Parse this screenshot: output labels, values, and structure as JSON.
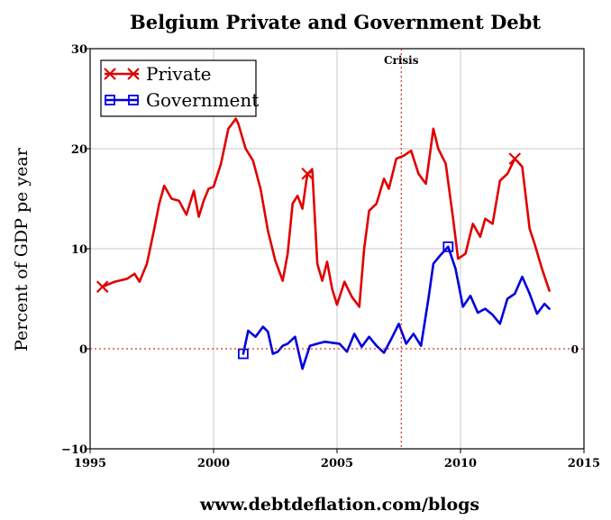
{
  "chart_data": {
    "type": "line",
    "title": "Belgium Private and Government Debt",
    "xlabel": "",
    "ylabel": "Percent of GDP pe year",
    "xlim": [
      1995,
      2015
    ],
    "ylim": [
      -10,
      30
    ],
    "x_ticks": [
      1995,
      2000,
      2005,
      2010,
      2015
    ],
    "y_ticks": [
      -10,
      0,
      10,
      20,
      30
    ],
    "x_tick_labels": [
      "1995",
      "2000",
      "2005",
      "2010",
      "2015"
    ],
    "y_tick_labels": [
      "−10",
      "0",
      "10",
      "20",
      "30"
    ],
    "grid": true,
    "legend_position": "top-left",
    "annotations": {
      "crisis_label": "Crisis",
      "crisis_x": 2007.6,
      "zero_label": "0"
    },
    "footer": "www.debtdeflation.com/blogs",
    "series": [
      {
        "name": "Private",
        "color": "#e00000",
        "marker": "x",
        "x": [
          1995.5,
          1996.0,
          1996.5,
          1996.8,
          1997.0,
          1997.3,
          1997.6,
          1997.8,
          1998.0,
          1998.3,
          1998.6,
          1998.9,
          1999.2,
          1999.4,
          1999.6,
          1999.8,
          2000.0,
          2000.3,
          2000.6,
          2000.9,
          2001.0,
          2001.3,
          2001.6,
          2001.9,
          2002.2,
          2002.5,
          2002.8,
          2003.0,
          2003.2,
          2003.4,
          2003.6,
          2003.8,
          2004.0,
          2004.2,
          2004.4,
          2004.6,
          2004.8,
          2005.0,
          2005.3,
          2005.6,
          2005.9,
          2006.1,
          2006.3,
          2006.6,
          2006.9,
          2007.1,
          2007.4,
          2007.7,
          2008.0,
          2008.3,
          2008.6,
          2008.9,
          2009.1,
          2009.4,
          2009.7,
          2009.9,
          2010.2,
          2010.5,
          2010.8,
          2011.0,
          2011.3,
          2011.6,
          2011.9,
          2012.2,
          2012.5,
          2012.8,
          2013.0,
          2013.3,
          2013.6
        ],
        "values": [
          6.2,
          6.7,
          7.0,
          7.5,
          6.7,
          8.5,
          12.0,
          14.5,
          16.3,
          15.0,
          14.8,
          13.4,
          15.8,
          13.2,
          14.8,
          16.0,
          16.2,
          18.5,
          22.0,
          23.0,
          22.5,
          20.0,
          18.8,
          16.0,
          11.8,
          8.8,
          6.8,
          9.5,
          14.5,
          15.3,
          14.0,
          17.5,
          17.8,
          8.5,
          6.8,
          8.7,
          6.0,
          4.4,
          6.7,
          5.2,
          4.2,
          10.0,
          13.8,
          14.5,
          17.0,
          16.0,
          19.0,
          19.3,
          19.8,
          17.5,
          16.5,
          22.0,
          20.0,
          18.5,
          13.0,
          9.0,
          9.5,
          12.5,
          11.2,
          13.0,
          12.5,
          16.8,
          17.5,
          19.0,
          18.2,
          12.0,
          10.5,
          8.0,
          5.8
        ]
      },
      {
        "name": "Government",
        "color": "#0000dd",
        "marker": "square",
        "x": [
          2001.2,
          2001.4,
          2001.7,
          2002.0,
          2002.2,
          2002.4,
          2002.6,
          2002.8,
          2003.0,
          2003.3,
          2003.6,
          2003.9,
          2004.2,
          2004.5,
          2004.8,
          2005.1,
          2005.4,
          2005.7,
          2006.0,
          2006.3,
          2006.6,
          2006.9,
          2007.2,
          2007.5,
          2007.8,
          2008.1,
          2008.4,
          2008.7,
          2008.9,
          2009.2,
          2009.5,
          2009.8,
          2010.1,
          2010.4,
          2010.7,
          2011.0,
          2011.3,
          2011.6,
          2011.9,
          2012.2,
          2012.5,
          2012.8,
          2013.1,
          2013.4,
          2013.6
        ],
        "values": [
          -0.5,
          1.8,
          1.2,
          2.2,
          1.7,
          -0.5,
          -0.3,
          0.3,
          0.5,
          1.2,
          -2.0,
          0.3,
          0.5,
          0.7,
          0.6,
          0.5,
          -0.3,
          1.5,
          0.2,
          1.2,
          0.3,
          -0.4,
          1.0,
          2.5,
          0.5,
          1.5,
          0.3,
          5.0,
          8.5,
          9.4,
          10.2,
          8.0,
          4.2,
          5.3,
          3.6,
          4.0,
          3.4,
          2.5,
          5.0,
          5.5,
          7.2,
          5.5,
          3.5,
          4.5,
          4.0
        ]
      }
    ]
  }
}
